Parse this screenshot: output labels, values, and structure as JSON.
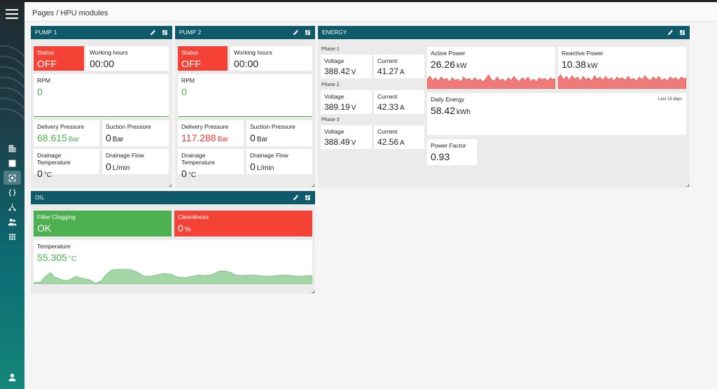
{
  "breadcrumb": "Pages / HPU modules",
  "icons": [
    "menu-icon",
    "building-icon",
    "bar-chart-icon",
    "expand-icon",
    "braces-icon",
    "hierarchy-icon",
    "people-icon",
    "apps-icon",
    "user-icon",
    "edit-icon",
    "dashboard-icon"
  ],
  "colors": {
    "header": "#0e5a6a",
    "red": "#f44336",
    "green": "#4caf50",
    "green_text": "#4caf50",
    "red_text": "#e53935"
  },
  "pump1": {
    "title": "PUMP 1",
    "status_label": "Status",
    "status_value": "OFF",
    "hours_label": "Working hours",
    "hours_value": "00:00",
    "rpm_label": "RPM",
    "rpm_value": "0",
    "delivery_label": "Delivery Pressure",
    "delivery_value": "68.615",
    "delivery_unit": "Bar",
    "suction_label": "Suction Pressure",
    "suction_value": "0",
    "suction_unit": "Bar",
    "drain_temp_label": "Drainage Temperature",
    "drain_temp_value": "0",
    "drain_temp_unit": "°C",
    "drain_flow_label": "Drainage Flow",
    "drain_flow_value": "0",
    "drain_flow_unit": "L/min"
  },
  "pump2": {
    "title": "PUMP 2",
    "status_label": "Status",
    "status_value": "OFF",
    "hours_label": "Working hours",
    "hours_value": "00:00",
    "rpm_label": "RPM",
    "rpm_value": "0",
    "delivery_label": "Delivery Pressure",
    "delivery_value": "117.288",
    "delivery_unit": "Bar",
    "suction_label": "Suction Pressure",
    "suction_value": "0",
    "suction_unit": "Bar",
    "drain_temp_label": "Drainage Temperature",
    "drain_temp_value": "0",
    "drain_temp_unit": "°C",
    "drain_flow_label": "Drainage Flow",
    "drain_flow_value": "0",
    "drain_flow_unit": "L/min"
  },
  "energy": {
    "title": "ENERGY",
    "phases": [
      {
        "label": "Phase 1",
        "voltage_label": "Voltage",
        "voltage": "388.42",
        "voltage_unit": "V",
        "current_label": "Current",
        "current": "41.27",
        "current_unit": "A"
      },
      {
        "label": "Phase 2",
        "voltage_label": "Voltage",
        "voltage": "389.19",
        "voltage_unit": "V",
        "current_label": "Current",
        "current": "42.33",
        "current_unit": "A"
      },
      {
        "label": "Phase 3",
        "voltage_label": "Voltage",
        "voltage": "388.49",
        "voltage_unit": "V",
        "current_label": "Current",
        "current": "42.56",
        "current_unit": "A"
      }
    ],
    "active_label": "Active Power",
    "active_value": "26.26",
    "active_unit": "kW",
    "reactive_label": "Reactive Power",
    "reactive_value": "10.38",
    "reactive_unit": "kW",
    "daily_label": "Daily Energy",
    "daily_value": "58.42",
    "daily_unit": "kWh",
    "daily_note": "Last 15 days",
    "pf_label": "Power Factor",
    "pf_value": "0.93"
  },
  "oil": {
    "title": "OIL",
    "filter_label": "Filter Clogging",
    "filter_value": "OK",
    "clean_label": "Cleanliness",
    "clean_value": "0",
    "clean_unit": "%",
    "temp_label": "Temperature",
    "temp_value": "55.305",
    "temp_unit": "°C"
  }
}
